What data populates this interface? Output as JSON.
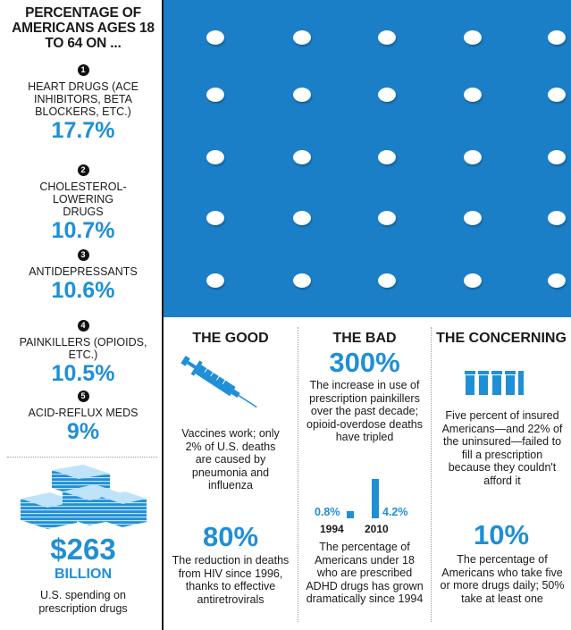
{
  "left": {
    "title": "PERCENTAGE OF AMERICANS AGES 18 TO 64 ON ...",
    "items": [
      {
        "rank": "1",
        "label": "HEART DRUGS (ACE INHIBITORS, BETA BLOCKERS, ETC.)",
        "value": "17.7%"
      },
      {
        "rank": "2",
        "label": "CHOLESTEROL-LOWERING DRUGS",
        "value": "10.7%"
      },
      {
        "rank": "3",
        "label": "ANTIDEPRESSANTS",
        "value": "10.6%"
      },
      {
        "rank": "4",
        "label": "PAINKILLERS (OPIOIDS, ETC.)",
        "value": "10.5%"
      },
      {
        "rank": "5",
        "label": "ACID-REFLUX MEDS",
        "value": "9%"
      }
    ],
    "spending": {
      "amount": "$263",
      "unit": "BILLION",
      "caption": "U.S. spending on prescription drugs"
    }
  },
  "good": {
    "heading": "THE GOOD",
    "text": "Vaccines work; only 2% of U.S. deaths are caused by pneumonia and influenza",
    "stat": "80%",
    "stat_text": "The reduction in deaths from HIV since 1996, thanks to effective antiretrovirals"
  },
  "bad": {
    "heading": "THE BAD",
    "stat": "300%",
    "text": "The increase in use of prescription painkillers over the past decade; opioid-overdose deaths have tripled",
    "chart_data": {
      "type": "bar",
      "categories": [
        "1994",
        "2010"
      ],
      "values": [
        0.8,
        4.2
      ],
      "value_labels": [
        "0.8%",
        "4.2%"
      ]
    },
    "chart_caption": "The percentage of Americans under 18 who are prescribed ADHD drugs has grown dramatically since 1994"
  },
  "concerning": {
    "heading": "THE CONCERNING",
    "text": "Five percent of insured Americans—and 22% of the uninsured—failed to fill a prescription because they couldn't afford it",
    "stat": "10%",
    "stat_text": "The percentage of Americans who take five or more drugs daily; 50% take at least one"
  },
  "colors": {
    "accent": "#1f8fd6",
    "photo_bg": "#1b7fc8"
  }
}
